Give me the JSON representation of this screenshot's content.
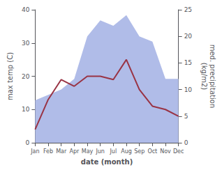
{
  "chart_data": {
    "type": "line",
    "categories": [
      "Jan",
      "Feb",
      "Mar",
      "Apr",
      "May",
      "Jun",
      "Jul",
      "Aug",
      "Sep",
      "Oct",
      "Nov",
      "Dec"
    ],
    "xlabel": "date (month)",
    "ylabel": "max temp (C)",
    "y2label": "med. precipitation\n(kg/m2)",
    "ylim": [
      0,
      40
    ],
    "yticks": [
      0,
      10,
      20,
      30,
      40
    ],
    "y2lim": [
      0,
      25
    ],
    "y2ticks": [
      0,
      5,
      10,
      15,
      20,
      25
    ],
    "grid": false,
    "series": [
      {
        "type": "area",
        "axis": "y2",
        "color": "#b0bce8",
        "values": [
          8,
          9,
          10,
          12,
          20,
          23,
          22,
          24,
          20,
          19,
          12,
          12
        ]
      },
      {
        "type": "line",
        "color": "#993344",
        "values": [
          4,
          13,
          19,
          17,
          20,
          20,
          19,
          25,
          16,
          11,
          10,
          8
        ]
      }
    ]
  }
}
